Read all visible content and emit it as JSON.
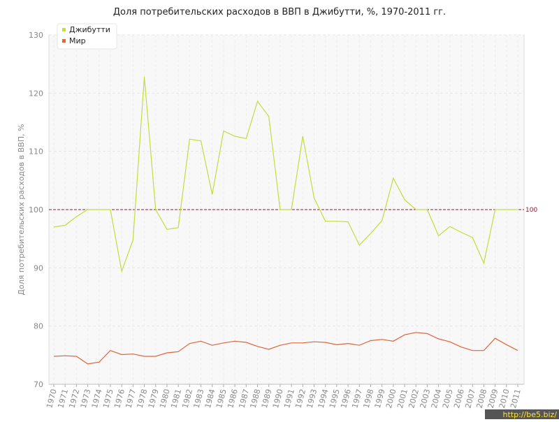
{
  "chart_data": {
    "type": "line",
    "title": "Доля потребительских расходов в ВВП в Джибутти, %, 1970-2011 гг.",
    "y_label": "Доля потребительских расходов в ВВП, %",
    "x": [
      1970,
      1971,
      1972,
      1973,
      1974,
      1975,
      1976,
      1977,
      1978,
      1979,
      1980,
      1981,
      1982,
      1983,
      1984,
      1985,
      1986,
      1987,
      1988,
      1989,
      1990,
      1991,
      1992,
      1993,
      1994,
      1995,
      1996,
      1997,
      1998,
      1999,
      2000,
      2001,
      2002,
      2003,
      2004,
      2005,
      2006,
      2007,
      2008,
      2009,
      2010,
      2011
    ],
    "series": [
      {
        "name": "Джибутти",
        "color": "#c2dd3c",
        "values": [
          97.0,
          97.3,
          98.8,
          100,
          100,
          100,
          89.4,
          94.8,
          122.8,
          100,
          96.6,
          96.9,
          112.1,
          111.8,
          102.6,
          113.5,
          112.6,
          112.2,
          118.6,
          116.0,
          100,
          100,
          112.6,
          102.0,
          98.0,
          98.0,
          97.9,
          93.9,
          95.9,
          98.1,
          105.4,
          101.7,
          100,
          100,
          95.5,
          97.1,
          96.1,
          95.2,
          90.8,
          100,
          100,
          100
        ]
      },
      {
        "name": "Мир",
        "color": "#e0643a",
        "values": [
          74.8,
          74.9,
          74.8,
          73.5,
          73.8,
          75.8,
          75.1,
          75.2,
          74.8,
          74.8,
          75.4,
          75.6,
          77.0,
          77.4,
          76.7,
          77.1,
          77.4,
          77.2,
          76.5,
          76.0,
          76.7,
          77.1,
          77.1,
          77.3,
          77.2,
          76.8,
          77.0,
          76.7,
          77.5,
          77.7,
          77.4,
          78.5,
          78.9,
          78.7,
          77.8,
          77.3,
          76.4,
          75.8,
          75.8,
          77.9,
          76.8,
          75.8
        ]
      }
    ],
    "ylim": [
      70,
      130
    ],
    "yticks": [
      70,
      80,
      90,
      100,
      110,
      120,
      130
    ],
    "grid": true,
    "legend": "top-left",
    "reference_line": {
      "value": 100,
      "color": "#8b1a3a"
    },
    "watermark": "http://be5.biz/"
  }
}
